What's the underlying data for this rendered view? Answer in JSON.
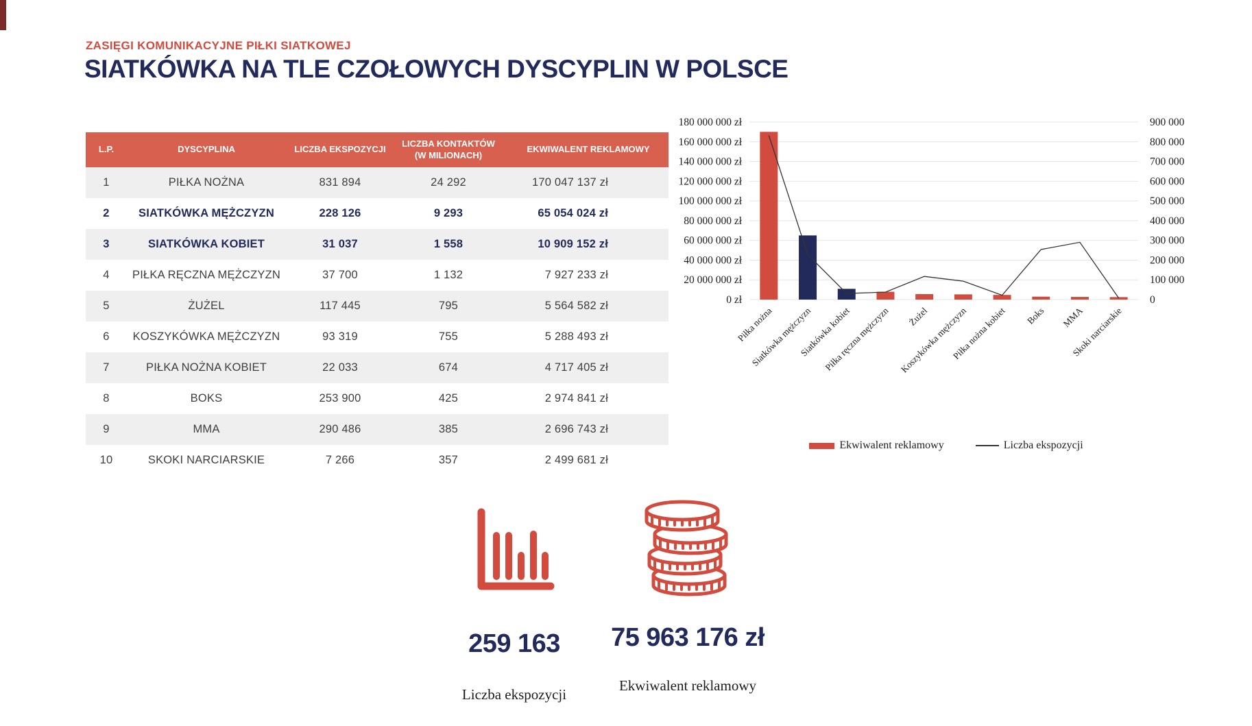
{
  "colors": {
    "red": "#d14b3e",
    "red-header": "#d7604f",
    "navy": "#222a5b",
    "row_alt": "#efefef",
    "grid": "#e4e4e4",
    "line": "#333333"
  },
  "header": {
    "eyebrow": "ZASIĘGI KOMUNIKACYJNE PIŁKI SIATKOWEJ",
    "title": "SIATKÓWKA NA TLE CZOŁOWYCH DYSCYPLIN W POLSCE"
  },
  "table": {
    "columns": [
      "L.P.",
      "DYSCYPLINA",
      "LICZBA EKSPOZYCJI",
      "LICZBA KONTAKTÓW (W MILIONACH)",
      "EKWIWALENT REKLAMOWY"
    ],
    "rows": [
      {
        "lp": "1",
        "dyscyplina": "PIŁKA NOŻNA",
        "ekspozycje": "831 894",
        "kontakty": "24 292",
        "ekwiwalent": "170 047 137 zł",
        "highlight": false
      },
      {
        "lp": "2",
        "dyscyplina": "SIATKÓWKA MĘŻCZYZN",
        "ekspozycje": "228 126",
        "kontakty": "9 293",
        "ekwiwalent": "65 054 024 zł",
        "highlight": true
      },
      {
        "lp": "3",
        "dyscyplina": "SIATKÓWKA KOBIET",
        "ekspozycje": "31 037",
        "kontakty": "1 558",
        "ekwiwalent": "10 909 152 zł",
        "highlight": true
      },
      {
        "lp": "4",
        "dyscyplina": "PIŁKA RĘCZNA MĘŻCZYZN",
        "ekspozycje": "37 700",
        "kontakty": "1 132",
        "ekwiwalent": "7 927 233 zł",
        "highlight": false
      },
      {
        "lp": "5",
        "dyscyplina": "ŻUŻEL",
        "ekspozycje": "117 445",
        "kontakty": "795",
        "ekwiwalent": "5 564 582 zł",
        "highlight": false
      },
      {
        "lp": "6",
        "dyscyplina": "KOSZYKÓWKA MĘŻCZYZN",
        "ekspozycje": "93 319",
        "kontakty": "755",
        "ekwiwalent": "5 288 493 zł",
        "highlight": false
      },
      {
        "lp": "7",
        "dyscyplina": "PIŁKA NOŻNA KOBIET",
        "ekspozycje": "22 033",
        "kontakty": "674",
        "ekwiwalent": "4 717 405 zł",
        "highlight": false
      },
      {
        "lp": "8",
        "dyscyplina": "BOKS",
        "ekspozycje": "253 900",
        "kontakty": "425",
        "ekwiwalent": "2 974 841 zł",
        "highlight": false
      },
      {
        "lp": "9",
        "dyscyplina": "MMA",
        "ekspozycje": "290 486",
        "kontakty": "385",
        "ekwiwalent": "2 696 743 zł",
        "highlight": false
      },
      {
        "lp": "10",
        "dyscyplina": "SKOKI NARCIARSKIE",
        "ekspozycje": "7 266",
        "kontakty": "357",
        "ekwiwalent": "2 499 681 zł",
        "highlight": false
      }
    ]
  },
  "chart_data": {
    "type": "bar",
    "subtype": "bar+line dual axis",
    "categories": [
      "Piłka nożna",
      "Siatkówka mężczyzn",
      "Siatkówka kobiet",
      "Piłka ręczna mężczyzn",
      "Żużel",
      "Koszykówka mężczyzn",
      "Piłka nożna kobiet",
      "Boks",
      "MMA",
      "Skoki narciarskie"
    ],
    "series": [
      {
        "name": "Ekwiwalent reklamowy",
        "type": "bar",
        "axis": "left",
        "values": [
          170047137,
          65054024,
          10909152,
          7927233,
          5564582,
          5288493,
          4717405,
          2974841,
          2696743,
          2499681
        ],
        "colors": [
          "red",
          "navy",
          "navy",
          "red",
          "red",
          "red",
          "red",
          "red",
          "red",
          "red"
        ]
      },
      {
        "name": "Liczba ekspozycji",
        "type": "line",
        "axis": "right",
        "values": [
          831894,
          228126,
          31037,
          37700,
          117445,
          93319,
          22033,
          253900,
          290486,
          7266
        ]
      }
    ],
    "left_axis": {
      "min": 0,
      "max": 180000000,
      "step": 20000000,
      "suffix": " zł"
    },
    "right_axis": {
      "min": 0,
      "max": 900000,
      "step": 100000,
      "suffix": ""
    },
    "grid": true,
    "legend_position": "bottom"
  },
  "legend": [
    {
      "label": "Ekwiwalent reklamowy",
      "marker": "bar"
    },
    {
      "label": "Liczba ekspozycji",
      "marker": "line"
    }
  ],
  "stats": [
    {
      "icon": "bar-chart-icon",
      "value": "259 163",
      "caption": "Liczba ekspozycji"
    },
    {
      "icon": "coins-icon",
      "value": "75 963 176 zł",
      "caption": "Ekwiwalent reklamowy"
    }
  ]
}
